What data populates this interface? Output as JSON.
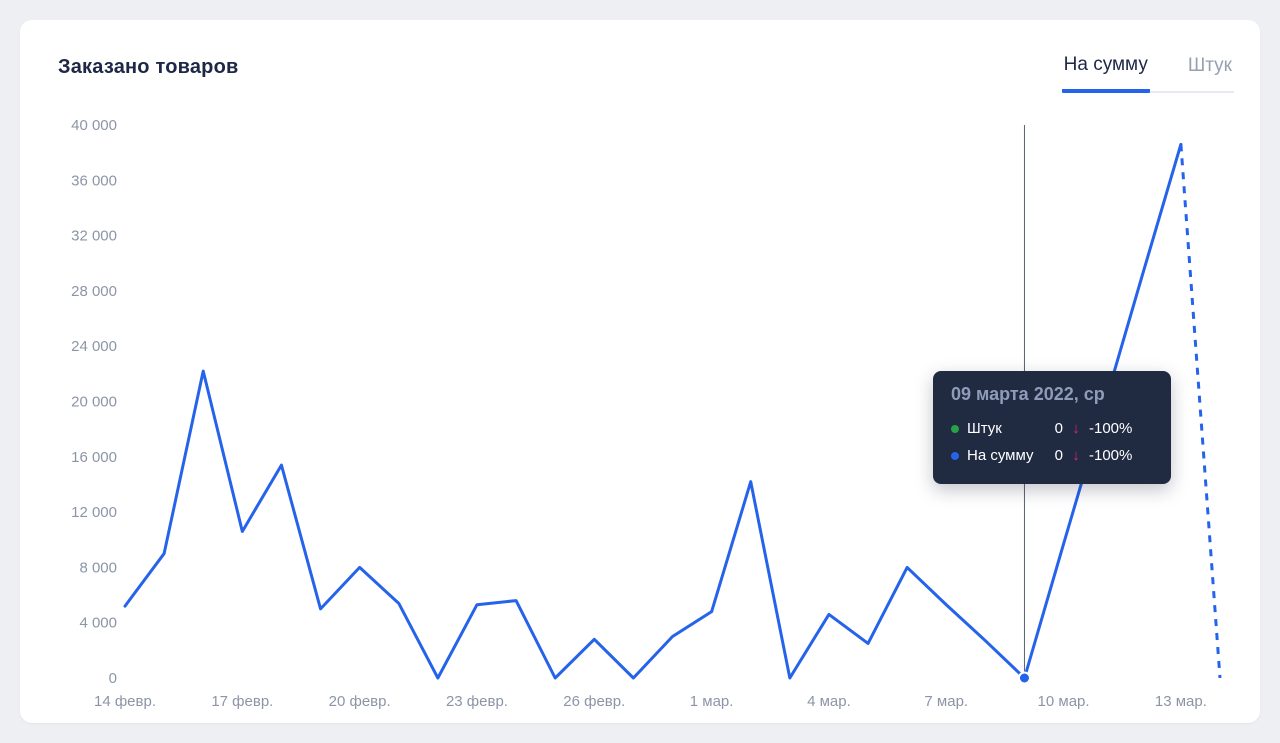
{
  "card": {
    "title": "Заказано товаров"
  },
  "tabs": [
    {
      "label": "На сумму",
      "active": true
    },
    {
      "label": "Штук",
      "active": false
    }
  ],
  "tooltip": {
    "title": "09 марта 2022, ср",
    "rows": [
      {
        "dot_color": "#27a344",
        "label": "Штук",
        "value": "0",
        "arrow": "↓",
        "percent": "-100%"
      },
      {
        "dot_color": "#2563eb",
        "label": "На сумму",
        "value": "0",
        "arrow": "↓",
        "percent": "-100%"
      }
    ]
  },
  "theme": {
    "accent_blue": "#2563eb",
    "negative_color": "#e5256b",
    "crosshair_color": "#596273",
    "axis_label_color": "#8c95a7"
  },
  "chart_data": {
    "type": "line",
    "title": "Заказано товаров",
    "series_name": "На сумму",
    "ylim": [
      0,
      40000
    ],
    "grid": false,
    "line_color": "#2563eb",
    "crosshair_color": "#596273",
    "values": [
      5200,
      9000,
      22200,
      10600,
      15400,
      5000,
      8000,
      5400,
      0,
      5300,
      5600,
      0,
      2800,
      0,
      3000,
      4800,
      14200,
      0,
      4600,
      2500,
      8000,
      5300,
      2700,
      0,
      9700,
      19300,
      29000,
      38600
    ],
    "dashed_tail_value": 0,
    "highlight_index": 23,
    "highlight_date": "09 марта 2022, ср",
    "x_ticks": [
      {
        "index": 0,
        "label": "14 февр."
      },
      {
        "index": 3,
        "label": "17 февр."
      },
      {
        "index": 6,
        "label": "20 февр."
      },
      {
        "index": 9,
        "label": "23 февр."
      },
      {
        "index": 12,
        "label": "26 февр."
      },
      {
        "index": 15,
        "label": "1 мар."
      },
      {
        "index": 18,
        "label": "4 мар."
      },
      {
        "index": 21,
        "label": "7 мар."
      },
      {
        "index": 24,
        "label": "10 мар."
      },
      {
        "index": 27,
        "label": "13 мар."
      }
    ],
    "y_ticks": [
      {
        "value": 0,
        "label": "0"
      },
      {
        "value": 4000,
        "label": "4 000"
      },
      {
        "value": 8000,
        "label": "8 000"
      },
      {
        "value": 12000,
        "label": "12 000"
      },
      {
        "value": 16000,
        "label": "16 000"
      },
      {
        "value": 20000,
        "label": "20 000"
      },
      {
        "value": 24000,
        "label": "24 000"
      },
      {
        "value": 28000,
        "label": "28 000"
      },
      {
        "value": 32000,
        "label": "32 000"
      },
      {
        "value": 36000,
        "label": "36 000"
      },
      {
        "value": 40000,
        "label": "40 000"
      }
    ]
  }
}
